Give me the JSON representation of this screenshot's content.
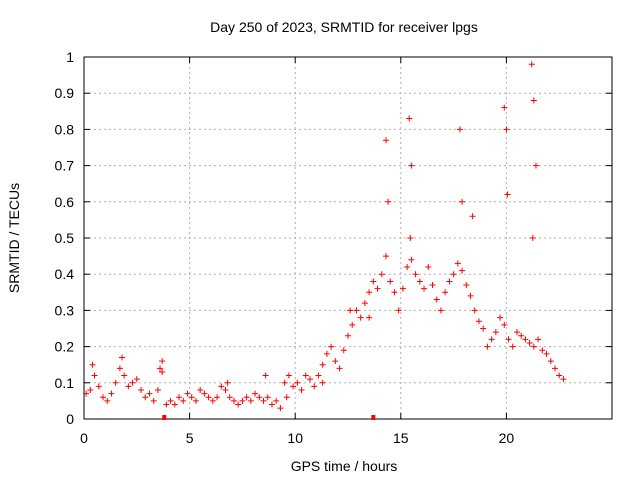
{
  "chart_data": {
    "type": "scatter",
    "title": "Day 250 of 2023, SRMTID for receiver lpgs",
    "xlabel": "GPS time / hours",
    "ylabel": "SRMTID / TECUs",
    "xlim": [
      0,
      25
    ],
    "ylim": [
      0,
      1
    ],
    "x_ticks": [
      "0",
      "5",
      "10",
      "15",
      "20"
    ],
    "y_ticks": [
      "0",
      "0.1",
      "0.2",
      "0.3",
      "0.4",
      "0.5",
      "0.6",
      "0.7",
      "0.8",
      "0.9",
      "1"
    ],
    "grid": true,
    "marker": "+",
    "color": "#ff0000",
    "baseline_gaps": [
      3.8,
      13.7
    ],
    "series": [
      {
        "name": "lpgs",
        "x": [
          0.1,
          0.3,
          0.5,
          0.7,
          0.9,
          1.1,
          1.3,
          1.5,
          1.7,
          1.9,
          2.1,
          2.3,
          2.5,
          2.7,
          2.9,
          3.1,
          3.3,
          3.5,
          3.7,
          3.9,
          4.1,
          4.3,
          4.5,
          4.7,
          4.9,
          5.1,
          5.3,
          5.5,
          5.7,
          5.9,
          6.1,
          6.3,
          6.5,
          6.7,
          6.9,
          7.1,
          7.3,
          7.5,
          7.7,
          7.9,
          8.1,
          8.3,
          8.5,
          8.7,
          8.9,
          9.1,
          9.3,
          9.5,
          9.7,
          9.9,
          10.1,
          10.3,
          10.5,
          10.7,
          10.9,
          11.1,
          11.3,
          11.5,
          11.7,
          11.9,
          12.1,
          12.3,
          12.5,
          12.7,
          12.9,
          13.1,
          13.3,
          13.5,
          13.7,
          13.9,
          14.1,
          14.3,
          14.5,
          14.7,
          14.9,
          15.1,
          15.3,
          15.5,
          15.7,
          15.9,
          16.1,
          16.3,
          16.5,
          16.7,
          16.9,
          17.1,
          17.3,
          17.5,
          17.7,
          17.9,
          18.1,
          18.3,
          18.5,
          18.7,
          18.9,
          19.1,
          19.3,
          19.5,
          19.7,
          19.9,
          20.1,
          20.3,
          20.5,
          20.7,
          20.9,
          21.1,
          21.3,
          21.5,
          21.7,
          21.9,
          22.1,
          22.3,
          22.5,
          22.7,
          0.4,
          1.8,
          3.6,
          3.7,
          6.8,
          8.6,
          9.6,
          11.3,
          12.6,
          13.5,
          14.3,
          14.4,
          15.4,
          15.5,
          17.8,
          17.9,
          18.4,
          19.9,
          20.0,
          21.2,
          21.3,
          21.4,
          21.25,
          20.05,
          15.45
        ],
        "y": [
          0.07,
          0.08,
          0.12,
          0.09,
          0.06,
          0.05,
          0.07,
          0.1,
          0.14,
          0.12,
          0.09,
          0.1,
          0.11,
          0.08,
          0.06,
          0.07,
          0.05,
          0.08,
          0.13,
          0.04,
          0.05,
          0.04,
          0.06,
          0.05,
          0.07,
          0.06,
          0.05,
          0.08,
          0.07,
          0.06,
          0.05,
          0.06,
          0.09,
          0.08,
          0.06,
          0.05,
          0.04,
          0.05,
          0.06,
          0.05,
          0.07,
          0.06,
          0.05,
          0.06,
          0.04,
          0.05,
          0.03,
          0.1,
          0.12,
          0.09,
          0.1,
          0.08,
          0.12,
          0.11,
          0.09,
          0.12,
          0.15,
          0.18,
          0.2,
          0.16,
          0.14,
          0.19,
          0.23,
          0.26,
          0.3,
          0.28,
          0.32,
          0.35,
          0.38,
          0.36,
          0.4,
          0.45,
          0.38,
          0.35,
          0.3,
          0.36,
          0.42,
          0.44,
          0.4,
          0.38,
          0.36,
          0.42,
          0.37,
          0.33,
          0.3,
          0.35,
          0.38,
          0.4,
          0.43,
          0.41,
          0.37,
          0.34,
          0.3,
          0.27,
          0.25,
          0.2,
          0.22,
          0.24,
          0.28,
          0.26,
          0.22,
          0.2,
          0.24,
          0.23,
          0.22,
          0.21,
          0.2,
          0.22,
          0.19,
          0.18,
          0.16,
          0.14,
          0.12,
          0.11,
          0.15,
          0.17,
          0.14,
          0.16,
          0.1,
          0.12,
          0.06,
          0.1,
          0.3,
          0.28,
          0.77,
          0.6,
          0.83,
          0.7,
          0.8,
          0.6,
          0.56,
          0.86,
          0.8,
          0.98,
          0.88,
          0.7,
          0.5,
          0.62,
          0.5
        ]
      }
    ]
  }
}
